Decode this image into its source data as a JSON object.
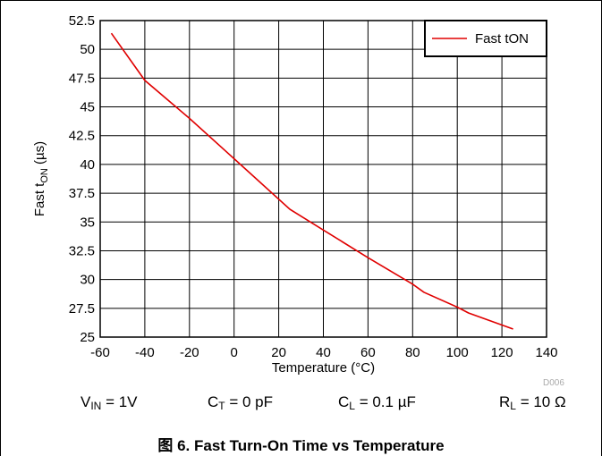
{
  "chart_data": {
    "type": "line",
    "xlabel": "Temperature (°C)",
    "ylabel_parts": {
      "pre": "Fast t",
      "sub": "ON",
      "post": " (µs)"
    },
    "xlim": [
      -60,
      140
    ],
    "ylim": [
      25,
      52.5
    ],
    "xticks": [
      "-60",
      "-40",
      "-20",
      "0",
      "20",
      "40",
      "60",
      "80",
      "100",
      "120",
      "140"
    ],
    "yticks": [
      "25",
      "27.5",
      "30",
      "32.5",
      "35",
      "37.5",
      "40",
      "42.5",
      "45",
      "47.5",
      "50",
      "52.5"
    ],
    "grid": true,
    "legend_position": "top-right",
    "series": [
      {
        "name": "Fast tON",
        "color": "#e00000",
        "x": [
          -55,
          -40,
          -20,
          0,
          25,
          40,
          60,
          80,
          85,
          100,
          105,
          125
        ],
        "y": [
          51.4,
          47.3,
          44.0,
          40.5,
          36.1,
          34.3,
          31.9,
          29.6,
          28.9,
          27.6,
          27.1,
          25.7
        ]
      }
    ]
  },
  "conditions": [
    {
      "main": "V",
      "sub": "IN",
      "rest": " = 1V"
    },
    {
      "main": "C",
      "sub": "T",
      "rest": " = 0 pF"
    },
    {
      "main": "C",
      "sub": "L",
      "rest": " = 0.1 µF"
    },
    {
      "main": "R",
      "sub": "L",
      "rest": " = 10 Ω"
    }
  ],
  "figure_label": "D006",
  "caption": "图 6. Fast Turn-On Time vs Temperature"
}
